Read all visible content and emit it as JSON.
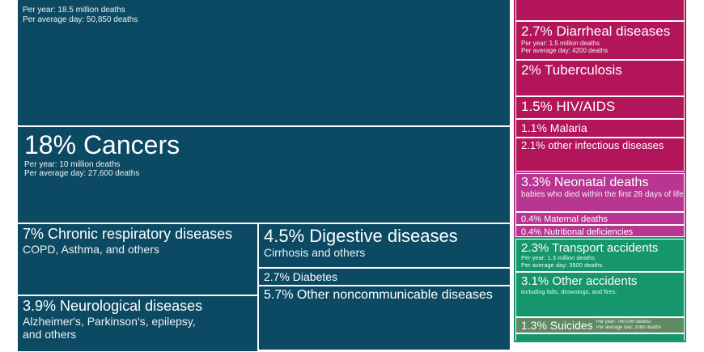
{
  "chart_data": {
    "type": "treemap",
    "colors": {
      "noncommunicable": "#0c4a63",
      "infectious": "#b2155a",
      "maternal_neonatal": "#b93592",
      "injuries": "#16966c",
      "suicides": "#5f8a63",
      "border": "#ffffff"
    },
    "cells": [
      {
        "id": "cardio",
        "group": "noncommunicable",
        "title": "",
        "lines": [
          "Per year: 18.5 million deaths",
          "Per average day: 50,850 deaths"
        ]
      },
      {
        "id": "cancers",
        "group": "noncommunicable",
        "percent": 18,
        "title": "18% Cancers",
        "lines": [
          "Per year: 10 million deaths",
          "Per average day: 27,600 deaths"
        ]
      },
      {
        "id": "respiratory",
        "group": "noncommunicable",
        "percent": 7,
        "title": "7% Chronic respiratory diseases",
        "subtitle": "COPD, Asthma, and others"
      },
      {
        "id": "digestive",
        "group": "noncommunicable",
        "percent": 4.5,
        "title": "4.5% Digestive diseases",
        "subtitle": "Cirrhosis and others"
      },
      {
        "id": "diabetes",
        "group": "noncommunicable",
        "percent": 2.7,
        "title": "2.7% Diabetes"
      },
      {
        "id": "other_ncd",
        "group": "noncommunicable",
        "percent": 5.7,
        "title": "5.7% Other noncommunicable diseases"
      },
      {
        "id": "neuro",
        "group": "noncommunicable",
        "percent": 3.9,
        "title": "3.9% Neurological diseases",
        "subtitle": "Alzheimer's, Parkinson's, epilepsy,",
        "subtitle2": "and others"
      },
      {
        "id": "top_infectious",
        "group": "infectious",
        "title": ""
      },
      {
        "id": "diarrheal",
        "group": "infectious",
        "percent": 2.7,
        "title": "2.7% Diarrheal diseases",
        "lines": [
          "Per year: 1.5 million deaths",
          "Per average day: 4200 deaths"
        ]
      },
      {
        "id": "tb",
        "group": "infectious",
        "percent": 2,
        "title": "2% Tuberculosis"
      },
      {
        "id": "hiv",
        "group": "infectious",
        "percent": 1.5,
        "title": "1.5% HIV/AIDS"
      },
      {
        "id": "malaria",
        "group": "infectious",
        "percent": 1.1,
        "title": "1.1% Malaria"
      },
      {
        "id": "other_inf",
        "group": "infectious",
        "percent": 2.1,
        "title": "2.1% other infectious diseases"
      },
      {
        "id": "neonatal",
        "group": "maternal_neonatal",
        "percent": 3.3,
        "title": "3.3% Neonatal deaths",
        "subtitle": "babies who died within the first 28 days of life"
      },
      {
        "id": "maternal",
        "group": "maternal_neonatal",
        "percent": 0.4,
        "title": "0.4% Maternal deaths"
      },
      {
        "id": "nutritional",
        "group": "maternal_neonatal",
        "percent": 0.4,
        "title": "0.4% Nutritional deficiencies"
      },
      {
        "id": "transport",
        "group": "injuries",
        "percent": 2.3,
        "title": "2.3% Transport accidents",
        "lines": [
          "Per year: 1.3 million deaths",
          "Per average day: 3500 deaths"
        ]
      },
      {
        "id": "other_acc",
        "group": "injuries",
        "percent": 3.1,
        "title": "3.1% Other accidents",
        "subtitle": "including falls, drownings, and fires."
      },
      {
        "id": "suicides",
        "group": "suicides",
        "percent": 1.3,
        "title": "1.3% Suicides",
        "lines": [
          "Per year: 760,000 deaths",
          "Per average day: 2080 deaths"
        ]
      },
      {
        "id": "bottom_injury",
        "group": "injuries",
        "title": ""
      }
    ]
  }
}
